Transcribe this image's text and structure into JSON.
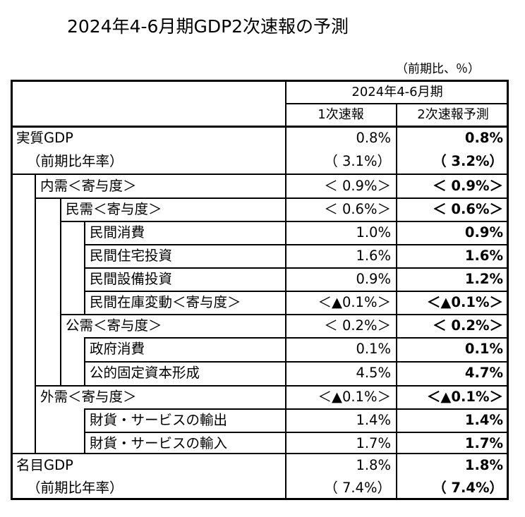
{
  "title": "2024年4-6月期GDP2次速報の予測",
  "unit_note": "（前期比、％）",
  "header": {
    "period": "2024年4-6月期",
    "col1": "1次速報",
    "col2": "2次速報予測"
  },
  "rows": [
    {
      "label": "実質GDP",
      "v1": "0.8%",
      "v2": "0.8%"
    },
    {
      "label": "（前期比年率）",
      "v1": "（ 3.1%）",
      "v2": "（ 3.2%）"
    },
    {
      "label": "内需＜寄与度＞",
      "v1": "＜ 0.9%＞",
      "v2": "＜ 0.9%＞"
    },
    {
      "label": "民需＜寄与度＞",
      "v1": "＜ 0.6%＞",
      "v2": "＜ 0.6%＞"
    },
    {
      "label": "民間消費",
      "v1": "1.0%",
      "v2": "0.9%"
    },
    {
      "label": "民間住宅投資",
      "v1": "1.6%",
      "v2": "1.6%"
    },
    {
      "label": "民間設備投資",
      "v1": "0.9%",
      "v2": "1.2%"
    },
    {
      "label": "民間在庫変動＜寄与度＞",
      "v1": "＜▲0.1%＞",
      "v2": "＜▲0.1%＞"
    },
    {
      "label": "公需＜寄与度＞",
      "v1": "＜ 0.2%＞",
      "v2": "＜ 0.2%＞"
    },
    {
      "label": "政府消費",
      "v1": "0.1%",
      "v2": "0.1%"
    },
    {
      "label": "公的固定資本形成",
      "v1": "4.5%",
      "v2": "4.7%"
    },
    {
      "label": "外需＜寄与度＞",
      "v1": "＜▲0.1%＞",
      "v2": "＜▲0.1%＞"
    },
    {
      "label": "財貨・サービスの輸出",
      "v1": "1.4%",
      "v2": "1.4%"
    },
    {
      "label": "財貨・サービスの輸入",
      "v1": "1.7%",
      "v2": "1.7%"
    },
    {
      "label": "名目GDP",
      "v1": "1.8%",
      "v2": "1.8%"
    },
    {
      "label": "（前期比年率）",
      "v1": "（ 7.4%）",
      "v2": "（ 7.4%）"
    }
  ]
}
